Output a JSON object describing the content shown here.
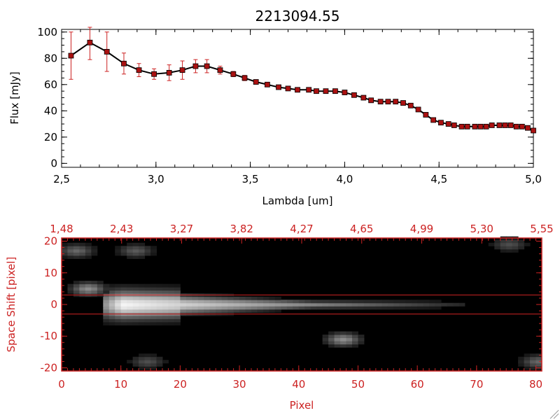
{
  "chart_data": [
    {
      "type": "line",
      "title": "2213094.55",
      "xlabel": "Lambda [um]",
      "ylabel": "Flux [mJy]",
      "xlim": [
        2.5,
        5.0
      ],
      "ylim": [
        -3,
        102
      ],
      "x_ticks": [
        "2.5",
        "3.0",
        "3.5",
        "4.0",
        "4.5",
        "5.0"
      ],
      "y_ticks": [
        "0",
        "20",
        "40",
        "60",
        "80",
        "100"
      ],
      "grid": false,
      "colors": {
        "line": "#000000",
        "marker": "#aa1111",
        "errorbar": "#cc2222"
      },
      "series": [
        {
          "x": [
            2.55,
            2.65,
            2.74,
            2.83,
            2.91,
            2.99,
            3.07,
            3.14,
            3.21,
            3.27,
            3.34,
            3.41,
            3.47,
            3.53,
            3.59,
            3.65,
            3.7,
            3.75,
            3.81,
            3.85,
            3.9,
            3.95,
            4.0,
            4.05,
            4.1,
            4.14,
            4.19,
            4.23,
            4.27,
            4.31,
            4.35,
            4.39,
            4.43,
            4.47,
            4.51,
            4.55,
            4.58,
            4.62,
            4.65,
            4.69,
            4.72,
            4.75,
            4.78,
            4.82,
            4.85,
            4.88,
            4.91,
            4.94,
            4.97,
            5.0
          ],
          "y": [
            82,
            92,
            85,
            76,
            71,
            68,
            69,
            71,
            74,
            74,
            71,
            68,
            65,
            62,
            60,
            58,
            57,
            56,
            56,
            55,
            55,
            55,
            54,
            52,
            50,
            48,
            47,
            47,
            47,
            46,
            44,
            41,
            37,
            33,
            31,
            30,
            29,
            28,
            28,
            28,
            28,
            28,
            29,
            29,
            29,
            29,
            28,
            28,
            27,
            25
          ],
          "err": [
            18,
            13,
            15,
            8,
            5,
            4,
            6,
            7,
            5,
            5,
            3,
            2,
            2,
            1.5,
            1.5,
            1,
            1,
            1,
            1,
            1,
            1,
            1,
            1,
            1,
            1,
            1,
            1,
            1,
            1,
            1,
            1,
            1,
            1,
            1,
            1,
            1,
            1,
            1,
            1,
            1,
            1,
            1,
            1,
            1,
            1,
            1,
            1,
            1,
            1,
            1
          ]
        }
      ]
    },
    {
      "type": "heatmap",
      "xlabel": "Pixel",
      "ylabel": "Space Shift [pixel]",
      "xlim": [
        0,
        81
      ],
      "ylim": [
        -21,
        21
      ],
      "x_ticks": [
        "0",
        "10",
        "20",
        "30",
        "40",
        "50",
        "60",
        "70",
        "80"
      ],
      "y_ticks": [
        "-20",
        "-10",
        "0",
        "10",
        "20"
      ],
      "top_ticks": [
        "1.48",
        "2.43",
        "3.27",
        "3.82",
        "4.27",
        "4.65",
        "4.99",
        "5.30",
        "5.55"
      ],
      "hlines": [
        3,
        -3
      ],
      "colormap": "grayscale",
      "colors": {
        "axis": "#cc2222",
        "hline": "#cc2222",
        "background": "#000000"
      },
      "features": [
        {
          "kind": "trace",
          "x_start": 7,
          "x_end": 67,
          "y": 0,
          "peak": 1.0
        },
        {
          "kind": "blob",
          "x": 4,
          "y": 5,
          "value": 0.55
        },
        {
          "kind": "blob",
          "x": 2,
          "y": 17,
          "value": 0.4
        },
        {
          "kind": "blob",
          "x": 12,
          "y": 17,
          "value": 0.35
        },
        {
          "kind": "blob",
          "x": 47,
          "y": -11,
          "value": 0.55
        },
        {
          "kind": "blob",
          "x": 14,
          "y": -18,
          "value": 0.3
        },
        {
          "kind": "blob",
          "x": 75,
          "y": 19,
          "value": 0.3
        },
        {
          "kind": "blob",
          "x": 80,
          "y": -18,
          "value": 0.4
        }
      ]
    }
  ]
}
